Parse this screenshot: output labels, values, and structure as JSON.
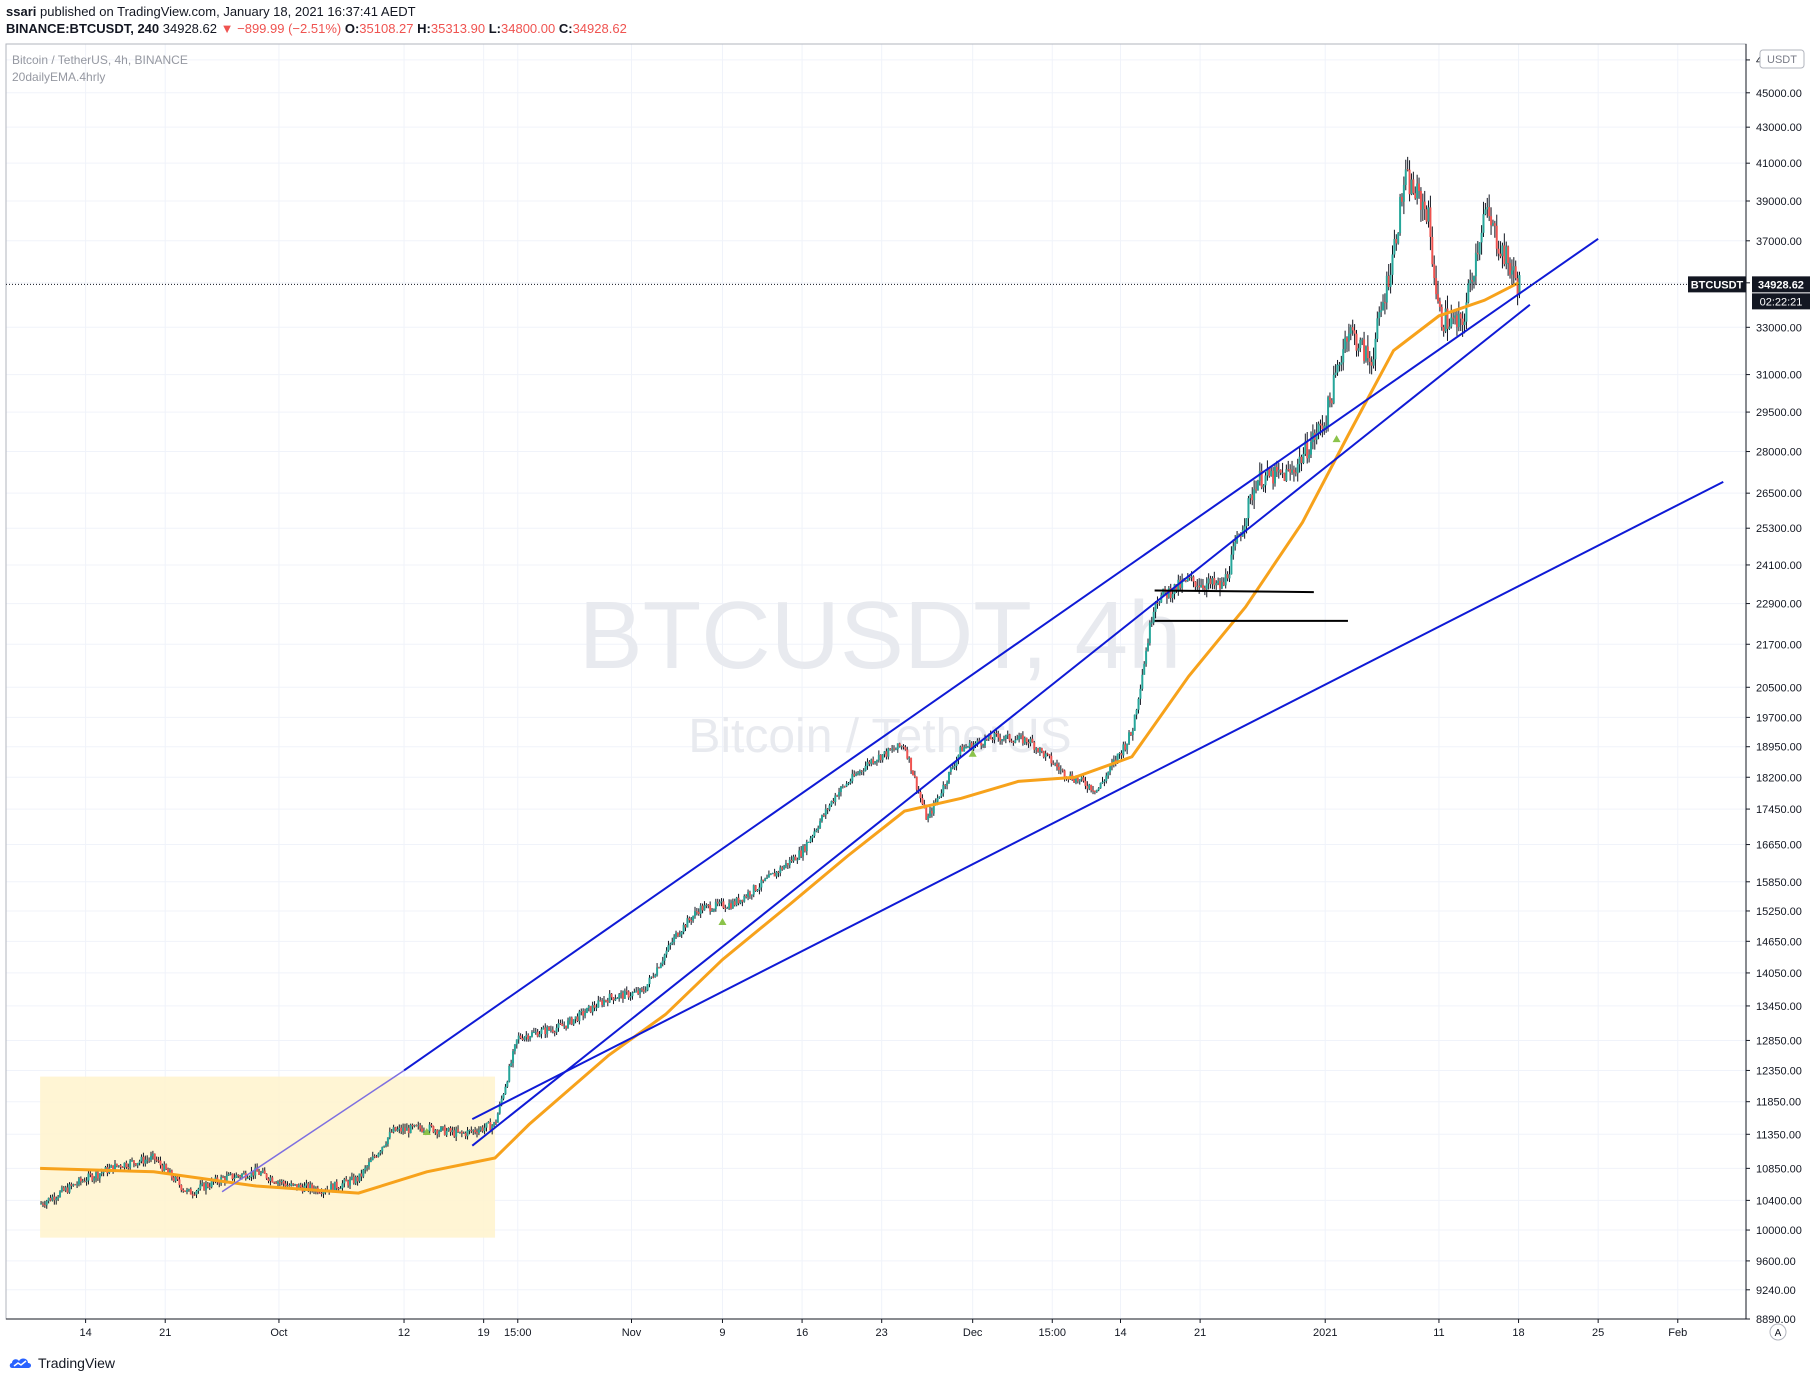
{
  "header": {
    "publisher": "ssari",
    "published_text": "published on TradingView.com, January 18, 2021 16:37:41 AEDT",
    "symbol_line": "BINANCE:BTCUSDT, 240",
    "last": "34928.62",
    "change": "−899.99 (−2.51%)",
    "open_label": "O:",
    "open": "35108.27",
    "high_label": "H:",
    "high": "35313.90",
    "low_label": "L:",
    "low": "34800.00",
    "close_label": "C:",
    "close": "34928.62"
  },
  "legend": {
    "series_title": "Bitcoin / TetherUS, 4h, BINANCE",
    "indicator": "20dailyEMA.4hrly"
  },
  "watermark": {
    "line1": "BTCUSDT, 4h",
    "line2": "Bitcoin / TetherUS"
  },
  "currency_badge": "USDT",
  "price_label": {
    "symbol": "BTCUSDT",
    "price": "34928.62",
    "countdown": "02:22:21"
  },
  "scale_mode": "A",
  "footer": {
    "brand": "TradingView"
  },
  "colors": {
    "candle_up": "#26a69a",
    "candle_down": "#ef5350",
    "bar_body": "#131722",
    "ema": "#f7a21b",
    "trendline": "#0f1ad6",
    "range_box": "#fff3cc",
    "signal": "#8bc34a"
  },
  "chart_data": {
    "type": "line",
    "title": "Bitcoin / TetherUS, 4h, BINANCE",
    "y_scale": "log",
    "ylim": [
      8890,
      48000
    ],
    "y_ticks": [
      47000,
      45000,
      43000,
      41000,
      39000,
      37000,
      35000,
      33000,
      31000,
      29500,
      28000,
      26500,
      25300,
      24100,
      22900,
      21700,
      20500,
      19700,
      18950,
      18200,
      17450,
      16650,
      15850,
      15250,
      14650,
      14050,
      13450,
      12850,
      12350,
      11850,
      11350,
      10850,
      10400,
      10000,
      9600,
      9240,
      8890
    ],
    "x_ticks": [
      "14",
      "21",
      "Oct",
      "12",
      "19",
      "15:00",
      "Nov",
      "9",
      "16",
      "23",
      "Dec",
      "15:00",
      "14",
      "21",
      "2021",
      "11",
      "18",
      "25",
      "Feb"
    ],
    "price_series": {
      "name": "BTCUSDT",
      "x": [
        "2020-09-10",
        "2020-09-14",
        "2020-09-17",
        "2020-09-20",
        "2020-09-23",
        "2020-09-26",
        "2020-09-29",
        "2020-10-02",
        "2020-10-05",
        "2020-10-08",
        "2020-10-11",
        "2020-10-14",
        "2020-10-17",
        "2020-10-20",
        "2020-10-22",
        "2020-10-26",
        "2020-10-30",
        "2020-11-02",
        "2020-11-05",
        "2020-11-07",
        "2020-11-10",
        "2020-11-13",
        "2020-11-16",
        "2020-11-19",
        "2020-11-22",
        "2020-11-25",
        "2020-11-27",
        "2020-11-30",
        "2020-12-03",
        "2020-12-06",
        "2020-12-09",
        "2020-12-12",
        "2020-12-15",
        "2020-12-17",
        "2020-12-20",
        "2020-12-23",
        "2020-12-26",
        "2020-12-29",
        "2021-01-01",
        "2021-01-03",
        "2021-01-05",
        "2021-01-07",
        "2021-01-08",
        "2021-01-10",
        "2021-01-11",
        "2021-01-13",
        "2021-01-15",
        "2021-01-17",
        "2021-01-18"
      ],
      "y": [
        10350,
        10700,
        10900,
        11000,
        10500,
        10700,
        10800,
        10600,
        10550,
        10700,
        11400,
        11450,
        11350,
        11500,
        12900,
        13100,
        13600,
        13700,
        14800,
        15300,
        15400,
        15900,
        16500,
        17800,
        18600,
        19000,
        17200,
        18900,
        19200,
        19100,
        18300,
        17900,
        19300,
        23000,
        23600,
        23400,
        27000,
        27200,
        29200,
        33000,
        31500,
        36500,
        40200,
        38500,
        33500,
        33000,
        38500,
        36000,
        34928.62
      ]
    },
    "ema_series": {
      "name": "20dailyEMA.4hrly",
      "x": [
        "2020-09-10",
        "2020-09-20",
        "2020-09-29",
        "2020-10-08",
        "2020-10-14",
        "2020-10-20",
        "2020-10-23",
        "2020-10-30",
        "2020-11-04",
        "2020-11-09",
        "2020-11-15",
        "2020-11-20",
        "2020-11-25",
        "2020-11-30",
        "2020-12-05",
        "2020-12-10",
        "2020-12-15",
        "2020-12-20",
        "2020-12-25",
        "2020-12-30",
        "2021-01-03",
        "2021-01-07",
        "2021-01-11",
        "2021-01-15",
        "2021-01-18"
      ],
      "y": [
        10850,
        10800,
        10600,
        10500,
        10800,
        11000,
        11500,
        12600,
        13300,
        14300,
        15400,
        16400,
        17400,
        17700,
        18100,
        18200,
        18700,
        20800,
        22800,
        25500,
        28600,
        32000,
        33500,
        34200,
        35000
      ]
    },
    "annotations": {
      "channel_upper": [
        {
          "x": "2020-10-12",
          "y": 12350
        },
        {
          "x": "2021-01-25",
          "y": 37100
        }
      ],
      "channel_lower": [
        {
          "x": "2020-10-18",
          "y": 11180
        },
        {
          "x": "2021-01-19",
          "y": 34000
        }
      ],
      "support_line": [
        {
          "x": "2020-10-18",
          "y": 11580
        },
        {
          "x": "2021-02-05",
          "y": 26900
        }
      ],
      "early_trend": [
        {
          "x": "2020-09-26",
          "y": 10520
        },
        {
          "x": "2020-10-12",
          "y": 12350
        }
      ],
      "resistance_23000": [
        {
          "x": "2020-12-17",
          "y": 23300
        },
        {
          "x": "2020-12-31",
          "y": 23250
        }
      ],
      "support_22400": [
        {
          "x": "2020-12-17",
          "y": 22380
        },
        {
          "x": "2021-01-03",
          "y": 22380
        }
      ],
      "range_box": {
        "x0": "2020-09-10",
        "x1": "2020-10-20",
        "y0": 9900,
        "y1": 12250
      }
    }
  }
}
